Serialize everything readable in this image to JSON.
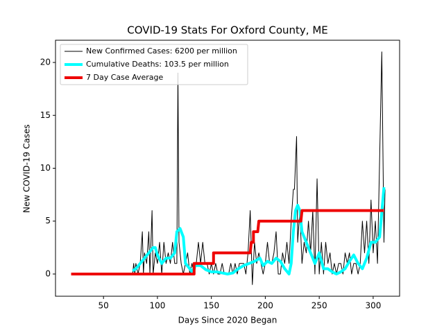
{
  "chart_data": {
    "type": "line",
    "title": "COVID-19 Stats For Oxford County, ME",
    "xlabel": "Days Since 2020 Began",
    "ylabel": "New COVID-19 Cases",
    "xlim": [
      5.5,
      324.5
    ],
    "ylim": [
      -2.1,
      22.1
    ],
    "xticks": [
      50,
      100,
      150,
      200,
      250,
      300
    ],
    "yticks": [
      0,
      5,
      10,
      15,
      20
    ],
    "legend": "upper left",
    "series": [
      {
        "name": "New Confirmed Cases: 6200 per million",
        "color": "#000000",
        "width": 1,
        "x": [
          77,
          78,
          79,
          80,
          82,
          84,
          86,
          87,
          88,
          90,
          92,
          93,
          95,
          96,
          98,
          100,
          102,
          104,
          106,
          108,
          110,
          112,
          114,
          116,
          118,
          119,
          120,
          122,
          124,
          126,
          128,
          130,
          132,
          134,
          136,
          138,
          140,
          142,
          144,
          146,
          148,
          150,
          152,
          154,
          156,
          158,
          160,
          162,
          164,
          166,
          168,
          170,
          172,
          174,
          176,
          178,
          180,
          182,
          184,
          186,
          188,
          190,
          192,
          194,
          196,
          198,
          200,
          202,
          204,
          206,
          208,
          210,
          212,
          214,
          216,
          218,
          220,
          222,
          224,
          226,
          227,
          229,
          230,
          232,
          234,
          236,
          238,
          240,
          242,
          244,
          246,
          248,
          250,
          252,
          254,
          256,
          258,
          260,
          262,
          264,
          266,
          268,
          270,
          272,
          274,
          276,
          278,
          280,
          282,
          284,
          286,
          288,
          290,
          292,
          294,
          296,
          298,
          300,
          302,
          304,
          306,
          308,
          310,
          311
        ],
        "values": [
          0,
          1,
          0,
          1,
          0,
          1,
          4,
          0,
          2,
          1,
          4,
          0,
          6,
          0,
          2,
          1,
          3,
          0,
          3,
          1,
          2,
          1,
          3,
          1,
          1,
          19,
          3,
          1,
          0,
          1,
          2,
          0,
          1,
          0,
          1,
          3,
          1,
          3,
          1,
          1,
          0,
          1,
          0,
          1,
          0,
          0,
          1,
          0,
          0,
          0,
          1,
          0,
          1,
          0,
          1,
          1,
          1,
          0,
          2,
          6,
          -1,
          3,
          1,
          2,
          1,
          0,
          1,
          3,
          1,
          1,
          2,
          4,
          0,
          0,
          2,
          1,
          3,
          1,
          5,
          8,
          8,
          13,
          3,
          6,
          1,
          3,
          2,
          5,
          2,
          6,
          0,
          9,
          0,
          3,
          0,
          3,
          1,
          2,
          0,
          1,
          0,
          1,
          1,
          0,
          2,
          1,
          2,
          0,
          1,
          1,
          0,
          1,
          5,
          2,
          5,
          1,
          7,
          2,
          5,
          1,
          11,
          21,
          3,
          8
        ]
      },
      {
        "name": "Cumulative Deaths: 103.5 per million",
        "color": "#00ffff",
        "width": 4,
        "x": [
          77,
          80,
          84,
          88,
          92,
          96,
          98,
          100,
          104,
          108,
          112,
          116,
          118,
          121,
          124,
          126,
          130,
          132,
          135,
          140,
          145,
          150,
          155,
          160,
          165,
          170,
          175,
          180,
          185,
          190,
          195,
          198,
          202,
          206,
          210,
          214,
          218,
          222,
          224,
          226,
          228,
          230,
          232,
          234,
          238,
          242,
          246,
          250,
          254,
          258,
          262,
          266,
          270,
          274,
          278,
          282,
          286,
          290,
          294,
          298,
          302,
          306,
          310
        ],
        "values": [
          0.3,
          0.5,
          1,
          1.5,
          2,
          2.5,
          2.5,
          1.8,
          1,
          1.5,
          1.5,
          2,
          4,
          4.3,
          3.5,
          1,
          0.5,
          0.2,
          0.8,
          0.8,
          0.4,
          0.2,
          0.2,
          0.1,
          0,
          0.1,
          0.5,
          0.8,
          1,
          1.2,
          1.5,
          0.8,
          1.2,
          1,
          1.5,
          1.2,
          0.5,
          0,
          1,
          4,
          6,
          6.5,
          6,
          4,
          3,
          2,
          1,
          2,
          0.5,
          0.5,
          0.2,
          0,
          0.2,
          0.5,
          1.2,
          1.8,
          1,
          0.5,
          1.5,
          3,
          3,
          3.5,
          8.2
        ]
      },
      {
        "name": "7 Day Case Average",
        "color": "#ee0000",
        "width": 4,
        "x": [
          20,
          134,
          134,
          152,
          152,
          186,
          187,
          189,
          189,
          193,
          194,
          233,
          234,
          310
        ],
        "values": [
          0,
          0,
          1,
          1,
          2,
          2,
          3,
          3,
          4,
          4,
          5,
          5,
          6,
          6
        ]
      }
    ]
  }
}
